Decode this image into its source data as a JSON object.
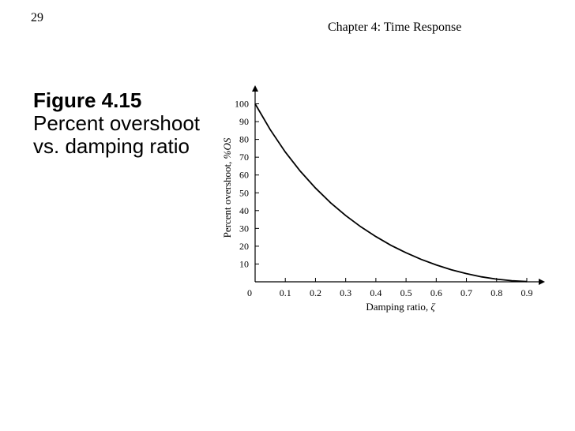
{
  "slide": {
    "number": "29",
    "chapter": "Chapter 4: Time Response",
    "figure_label": "Figure 4.15",
    "figure_caption": "Percent overshoot vs. damping ratio"
  },
  "chart_data": {
    "type": "line",
    "title": "",
    "xlabel_text": "Damping ratio, ",
    "xlabel_symbol": "ζ",
    "ylabel_text": "Percent overshoot, ",
    "ylabel_symbol": "%OS",
    "xlim": [
      0,
      0.9
    ],
    "ylim": [
      0,
      100
    ],
    "x_ticks": [
      0,
      0.1,
      0.2,
      0.3,
      0.4,
      0.5,
      0.6,
      0.7,
      0.8,
      0.9
    ],
    "x_tick_labels": [
      "0",
      "0.1",
      "0.2",
      "0.3",
      "0.4",
      "0.5",
      "0.6",
      "0.7",
      "0.8",
      "0.9"
    ],
    "y_ticks": [
      10,
      20,
      30,
      40,
      50,
      60,
      70,
      80,
      90,
      100
    ],
    "y_tick_labels": [
      "10",
      "20",
      "30",
      "40",
      "50",
      "60",
      "70",
      "80",
      "90",
      "100"
    ],
    "grid": false,
    "legend": "none",
    "series": [
      {
        "x": [
          0,
          0.05,
          0.1,
          0.15,
          0.2,
          0.25,
          0.3,
          0.35,
          0.4,
          0.45,
          0.5,
          0.55,
          0.6,
          0.65,
          0.7,
          0.75,
          0.8,
          0.85,
          0.9
        ],
        "values": [
          100,
          85.5,
          72.9,
          62.1,
          52.7,
          44.4,
          37.2,
          30.9,
          25.4,
          20.5,
          16.3,
          12.6,
          9.5,
          6.8,
          4.6,
          2.8,
          1.5,
          0.6,
          0.15
        ]
      }
    ]
  }
}
